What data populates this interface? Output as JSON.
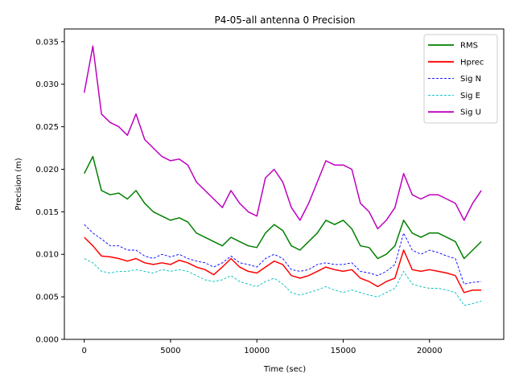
{
  "chart_data": {
    "type": "line",
    "title": "P4-05-all antenna 0 Precision",
    "xlabel": "Time (sec)",
    "ylabel": "Precision (m)",
    "xlim": [
      -1150,
      24300
    ],
    "ylim": [
      0.0,
      0.0365
    ],
    "xticks": [
      0,
      5000,
      10000,
      15000,
      20000
    ],
    "yticks": [
      0.0,
      0.005,
      0.01,
      0.015,
      0.02,
      0.025,
      0.03,
      0.035
    ],
    "xtick_labels": [
      "0",
      "5000",
      "10000",
      "15000",
      "20000"
    ],
    "ytick_labels": [
      "0.000",
      "0.005",
      "0.010",
      "0.015",
      "0.020",
      "0.025",
      "0.030",
      "0.035"
    ],
    "grid": false,
    "legend_position": "top-right",
    "x": [
      0,
      500,
      1000,
      1500,
      2000,
      2500,
      3000,
      3500,
      4000,
      4500,
      5000,
      5500,
      6000,
      6500,
      7000,
      7500,
      8000,
      8500,
      9000,
      9500,
      10000,
      10500,
      11000,
      11500,
      12000,
      12500,
      13000,
      13500,
      14000,
      14500,
      15000,
      15500,
      16000,
      16500,
      17000,
      17500,
      18000,
      18500,
      19000,
      19500,
      20000,
      20500,
      21000,
      21500,
      22000,
      22500,
      23000
    ],
    "series": [
      {
        "name": "RMS",
        "color": "#008000",
        "style": "solid",
        "values": [
          0.0195,
          0.0215,
          0.0175,
          0.017,
          0.0172,
          0.0165,
          0.0175,
          0.016,
          0.015,
          0.0145,
          0.014,
          0.0143,
          0.0138,
          0.0125,
          0.012,
          0.0115,
          0.011,
          0.012,
          0.0115,
          0.011,
          0.0108,
          0.0125,
          0.0135,
          0.0128,
          0.011,
          0.0105,
          0.0115,
          0.0125,
          0.014,
          0.0135,
          0.014,
          0.013,
          0.011,
          0.0108,
          0.0095,
          0.01,
          0.011,
          0.014,
          0.0125,
          0.012,
          0.0125,
          0.0125,
          0.012,
          0.0115,
          0.0095,
          0.0105,
          0.0115
        ]
      },
      {
        "name": "Hprec",
        "color": "#ff0000",
        "style": "solid",
        "values": [
          0.012,
          0.011,
          0.0098,
          0.0097,
          0.0095,
          0.0092,
          0.0095,
          0.009,
          0.0088,
          0.009,
          0.0088,
          0.0093,
          0.009,
          0.0085,
          0.0082,
          0.0076,
          0.0085,
          0.0095,
          0.0085,
          0.008,
          0.0078,
          0.0085,
          0.0092,
          0.0088,
          0.0075,
          0.0072,
          0.0075,
          0.008,
          0.0085,
          0.0082,
          0.008,
          0.0082,
          0.0072,
          0.0068,
          0.0062,
          0.0068,
          0.0072,
          0.0105,
          0.0082,
          0.008,
          0.0082,
          0.008,
          0.0078,
          0.0075,
          0.0055,
          0.0058,
          0.0058
        ]
      },
      {
        "name": "Sig N",
        "color": "#0000ff",
        "style": "dashed",
        "values": [
          0.0135,
          0.0125,
          0.0118,
          0.011,
          0.011,
          0.0105,
          0.0105,
          0.0098,
          0.0095,
          0.01,
          0.0097,
          0.01,
          0.0095,
          0.0092,
          0.009,
          0.0085,
          0.009,
          0.0098,
          0.009,
          0.0088,
          0.0085,
          0.0095,
          0.01,
          0.0095,
          0.0082,
          0.008,
          0.0082,
          0.0088,
          0.009,
          0.0088,
          0.0088,
          0.009,
          0.008,
          0.0078,
          0.0075,
          0.008,
          0.0088,
          0.0125,
          0.0105,
          0.01,
          0.0105,
          0.0102,
          0.0098,
          0.0095,
          0.0065,
          0.0067,
          0.0068
        ]
      },
      {
        "name": "Sig E",
        "color": "#00bfbf",
        "style": "dashed",
        "values": [
          0.0095,
          0.009,
          0.008,
          0.0078,
          0.008,
          0.008,
          0.0082,
          0.008,
          0.0078,
          0.0082,
          0.008,
          0.0082,
          0.008,
          0.0075,
          0.007,
          0.0068,
          0.007,
          0.0075,
          0.0068,
          0.0065,
          0.0062,
          0.0068,
          0.0072,
          0.0065,
          0.0055,
          0.0052,
          0.0055,
          0.0058,
          0.0062,
          0.0058,
          0.0055,
          0.0058,
          0.0055,
          0.0052,
          0.005,
          0.0055,
          0.006,
          0.008,
          0.0065,
          0.0062,
          0.006,
          0.006,
          0.0058,
          0.0055,
          0.004,
          0.0042,
          0.0045
        ]
      },
      {
        "name": "Sig U",
        "color": "#bf00bf",
        "style": "solid",
        "values": [
          0.029,
          0.0345,
          0.0265,
          0.0255,
          0.025,
          0.024,
          0.0265,
          0.0235,
          0.0225,
          0.0215,
          0.021,
          0.0212,
          0.0205,
          0.0185,
          0.0175,
          0.0165,
          0.0155,
          0.0175,
          0.016,
          0.015,
          0.0145,
          0.019,
          0.02,
          0.0185,
          0.0155,
          0.014,
          0.016,
          0.0185,
          0.021,
          0.0205,
          0.0205,
          0.02,
          0.016,
          0.015,
          0.013,
          0.014,
          0.0155,
          0.0195,
          0.017,
          0.0165,
          0.017,
          0.017,
          0.0165,
          0.016,
          0.014,
          0.016,
          0.0175
        ]
      }
    ]
  }
}
